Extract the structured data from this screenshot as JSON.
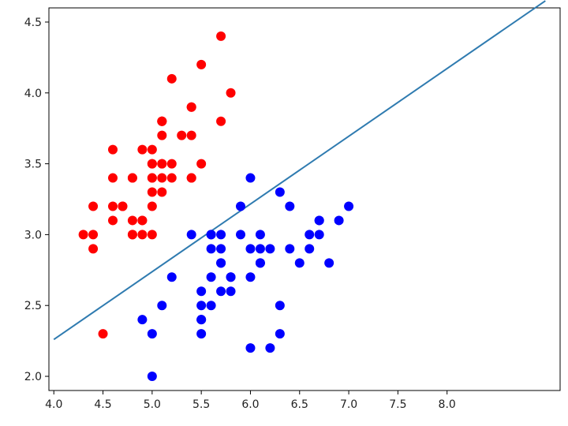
{
  "chart_data": {
    "type": "scatter",
    "title": "",
    "xlabel": "",
    "ylabel": "",
    "xlim": [
      3.95,
      9.15
    ],
    "ylim": [
      1.9,
      4.6
    ],
    "grid": false,
    "legend": "none",
    "x_ticks": [
      4.0,
      4.5,
      5.0,
      5.5,
      6.0,
      6.5,
      7.0,
      7.5,
      8.0
    ],
    "x_tick_labels": [
      "4.0",
      "4.5",
      "5.0",
      "5.5",
      "6.0",
      "6.5",
      "7.0",
      "7.5",
      "8.0"
    ],
    "y_ticks": [
      2.0,
      2.5,
      3.0,
      3.5,
      4.0,
      4.5
    ],
    "y_tick_labels": [
      "2.0",
      "2.5",
      "3.0",
      "3.5",
      "4.0",
      "4.5"
    ],
    "series": [
      {
        "color": "#ff0000",
        "points": [
          [
            5.1,
            3.5
          ],
          [
            4.9,
            3.0
          ],
          [
            4.7,
            3.2
          ],
          [
            4.6,
            3.1
          ],
          [
            5.0,
            3.6
          ],
          [
            5.4,
            3.9
          ],
          [
            4.6,
            3.4
          ],
          [
            5.0,
            3.4
          ],
          [
            4.4,
            2.9
          ],
          [
            4.9,
            3.1
          ],
          [
            5.4,
            3.7
          ],
          [
            4.8,
            3.4
          ],
          [
            4.8,
            3.0
          ],
          [
            4.3,
            3.0
          ],
          [
            5.8,
            4.0
          ],
          [
            5.7,
            4.4
          ],
          [
            5.4,
            3.9
          ],
          [
            5.1,
            3.5
          ],
          [
            5.7,
            3.8
          ],
          [
            5.1,
            3.8
          ],
          [
            5.4,
            3.4
          ],
          [
            5.1,
            3.7
          ],
          [
            4.6,
            3.6
          ],
          [
            5.1,
            3.3
          ],
          [
            4.8,
            3.4
          ],
          [
            5.0,
            3.0
          ],
          [
            5.0,
            3.4
          ],
          [
            5.2,
            3.5
          ],
          [
            5.2,
            3.4
          ],
          [
            4.7,
            3.2
          ],
          [
            4.8,
            3.1
          ],
          [
            5.4,
            3.4
          ],
          [
            5.2,
            4.1
          ],
          [
            5.5,
            4.2
          ],
          [
            4.9,
            3.1
          ],
          [
            5.0,
            3.2
          ],
          [
            5.5,
            3.5
          ],
          [
            4.9,
            3.6
          ],
          [
            4.4,
            3.0
          ],
          [
            5.1,
            3.4
          ],
          [
            5.0,
            3.5
          ],
          [
            4.5,
            2.3
          ],
          [
            4.4,
            3.2
          ],
          [
            5.0,
            3.5
          ],
          [
            5.1,
            3.8
          ],
          [
            4.8,
            3.0
          ],
          [
            5.1,
            3.8
          ],
          [
            4.6,
            3.2
          ],
          [
            5.3,
            3.7
          ],
          [
            5.0,
            3.3
          ]
        ]
      },
      {
        "color": "#0000ff",
        "points": [
          [
            7.0,
            3.2
          ],
          [
            6.4,
            3.2
          ],
          [
            6.9,
            3.1
          ],
          [
            5.5,
            2.3
          ],
          [
            6.5,
            2.8
          ],
          [
            5.7,
            2.8
          ],
          [
            6.3,
            3.3
          ],
          [
            4.9,
            2.4
          ],
          [
            6.6,
            2.9
          ],
          [
            5.2,
            2.7
          ],
          [
            5.0,
            2.0
          ],
          [
            5.9,
            3.0
          ],
          [
            6.0,
            2.2
          ],
          [
            6.1,
            2.9
          ],
          [
            5.6,
            2.9
          ],
          [
            6.7,
            3.1
          ],
          [
            5.6,
            3.0
          ],
          [
            5.8,
            2.7
          ],
          [
            6.2,
            2.2
          ],
          [
            5.6,
            2.5
          ],
          [
            5.9,
            3.2
          ],
          [
            6.1,
            2.8
          ],
          [
            6.3,
            2.5
          ],
          [
            6.1,
            2.8
          ],
          [
            6.4,
            2.9
          ],
          [
            6.6,
            3.0
          ],
          [
            6.8,
            2.8
          ],
          [
            6.7,
            3.0
          ],
          [
            6.0,
            2.9
          ],
          [
            5.7,
            2.6
          ],
          [
            5.5,
            2.4
          ],
          [
            5.5,
            2.4
          ],
          [
            5.8,
            2.7
          ],
          [
            6.0,
            2.7
          ],
          [
            5.4,
            3.0
          ],
          [
            6.0,
            3.4
          ],
          [
            6.7,
            3.1
          ],
          [
            6.3,
            2.3
          ],
          [
            5.6,
            3.0
          ],
          [
            5.5,
            2.5
          ],
          [
            5.5,
            2.6
          ],
          [
            6.1,
            3.0
          ],
          [
            5.8,
            2.6
          ],
          [
            5.0,
            2.3
          ],
          [
            5.6,
            2.7
          ],
          [
            5.7,
            3.0
          ],
          [
            5.7,
            2.9
          ],
          [
            6.2,
            2.9
          ],
          [
            5.1,
            2.5
          ],
          [
            5.7,
            2.8
          ]
        ]
      }
    ],
    "line": {
      "color": "#2f7bb0",
      "x": [
        4.0,
        9.0
      ],
      "y": [
        2.26,
        4.65
      ]
    }
  }
}
